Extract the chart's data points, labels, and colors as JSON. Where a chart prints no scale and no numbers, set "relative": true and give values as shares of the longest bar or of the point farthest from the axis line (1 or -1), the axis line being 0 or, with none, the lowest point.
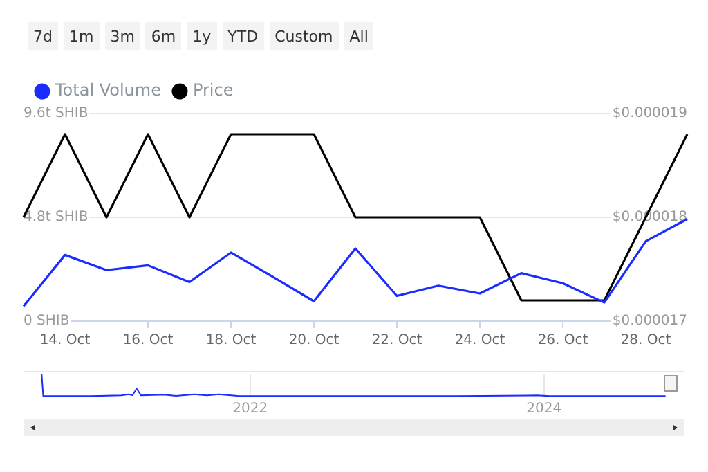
{
  "chart_data": [
    {
      "type": "line",
      "categories": [
        null,
        "14. Oct",
        null,
        "16. Oct",
        null,
        "18. Oct",
        null,
        "20. Oct",
        null,
        "22. Oct",
        null,
        "24. Oct",
        null,
        "26. Oct",
        null,
        "28. Oct",
        null
      ],
      "series": [
        {
          "name": "Total Volume",
          "color": "#1a2cff",
          "values": [
            0.69,
            3.06,
            2.36,
            2.58,
            1.81,
            3.17,
            2.06,
            0.92,
            3.36,
            1.17,
            1.64,
            1.28,
            2.22,
            1.75,
            0.86,
            3.69,
            4.72
          ]
        },
        {
          "name": "Price",
          "color": "#000000",
          "axis": "y2",
          "values": [
            1.8e-05,
            1.88e-05,
            1.8e-05,
            1.88e-05,
            1.8e-05,
            1.88e-05,
            1.88e-05,
            1.88e-05,
            1.8e-05,
            1.8e-05,
            1.8e-05,
            1.8e-05,
            1.72e-05,
            1.72e-05,
            1.72e-05,
            1.8e-05,
            1.88e-05
          ]
        }
      ],
      "ylim": [
        0,
        9.6
      ],
      "yticks": [
        {
          "value": 0,
          "label": "0 SHIB"
        },
        {
          "value": 4.8,
          "label": "4.8t SHIB"
        },
        {
          "value": 9.6,
          "label": "9.6t SHIB"
        }
      ],
      "y2lim": [
        1.7e-05,
        1.9e-05
      ],
      "y2ticks": [
        {
          "value": 1.7e-05,
          "label": "$0.000017"
        },
        {
          "value": 1.8e-05,
          "label": "$0.000018"
        },
        {
          "value": 1.9e-05,
          "label": "$0.000019"
        }
      ],
      "grid": "y",
      "legend": "top left",
      "marker": "none",
      "line_style": "solid",
      "annotations": [
        "7d",
        "1m",
        "3m",
        "6m",
        "1y",
        "YTD",
        "Custom",
        "All"
      ]
    },
    {
      "type": "line",
      "relative": true,
      "tick_labels": "x",
      "grid": "x",
      "marker": "none",
      "xlim": [
        "2020-06-17",
        "2024-12-15"
      ],
      "xticks": [
        "2022",
        "2024"
      ],
      "series": [
        {
          "color": "#1a2cff",
          "x": [
            "2020-08-01",
            "2020-08-05",
            "2020-12-01",
            "2021-02-15",
            "2021-03-05",
            "2021-03-15",
            "2021-03-25",
            "2021-04-05",
            "2021-06-01",
            "2021-07-01",
            "2021-08-15",
            "2021-09-15",
            "2021-10-15",
            "2021-12-01",
            "2022-06-01",
            "2023-06-01",
            "2023-12-15",
            "2024-01-15",
            "2024-10-29"
          ],
          "values": [
            1,
            0.02,
            0.02,
            0.05,
            0.1,
            0.06,
            0.35,
            0.05,
            0.08,
            0.03,
            0.1,
            0.05,
            0.1,
            0.03,
            0.02,
            0.02,
            0.05,
            0.02,
            0.02
          ]
        }
      ]
    }
  ]
}
